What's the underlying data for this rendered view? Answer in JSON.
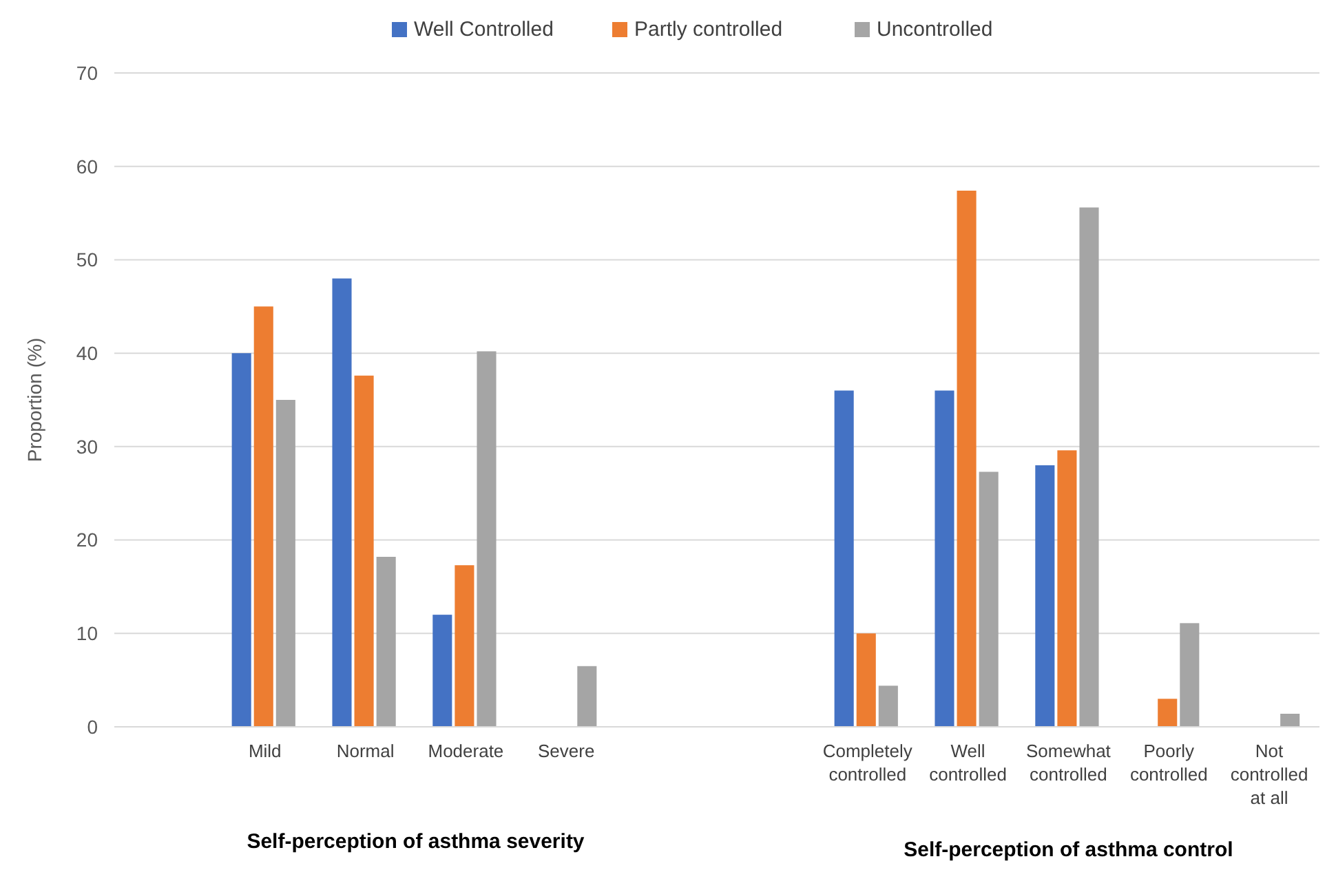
{
  "chart_data": {
    "type": "bar",
    "ylabel": "Proportion (%)",
    "categories": [
      null,
      "Mild",
      "Normal",
      "Moderate",
      "Severe",
      null,
      null,
      "Completely controlled",
      "Well controlled",
      "Somewhat controlled",
      "Poorly controlled",
      "Not controlled at all"
    ],
    "series": [
      {
        "name": "Well Controlled",
        "color": "#4472c4",
        "values": [
          null,
          40,
          48,
          12,
          0,
          null,
          null,
          36,
          36,
          28,
          0,
          0
        ]
      },
      {
        "name": "Partly controlled",
        "color": "#ed7d31",
        "values": [
          null,
          45,
          37.6,
          17.3,
          0,
          null,
          null,
          10,
          57.4,
          29.6,
          3,
          0
        ]
      },
      {
        "name": "Uncontrolled",
        "color": "#a5a5a5",
        "values": [
          null,
          35,
          18.2,
          40.2,
          6.5,
          null,
          null,
          4.4,
          27.3,
          55.6,
          11.1,
          1.4
        ]
      }
    ],
    "ylim": [
      0,
      70
    ],
    "yticks": [
      0,
      10,
      20,
      30,
      40,
      50,
      60,
      70
    ],
    "grid": "y",
    "legend": "top",
    "annotations": [
      "Self-perception of asthma severity",
      "Self-perception of asthma control"
    ]
  }
}
